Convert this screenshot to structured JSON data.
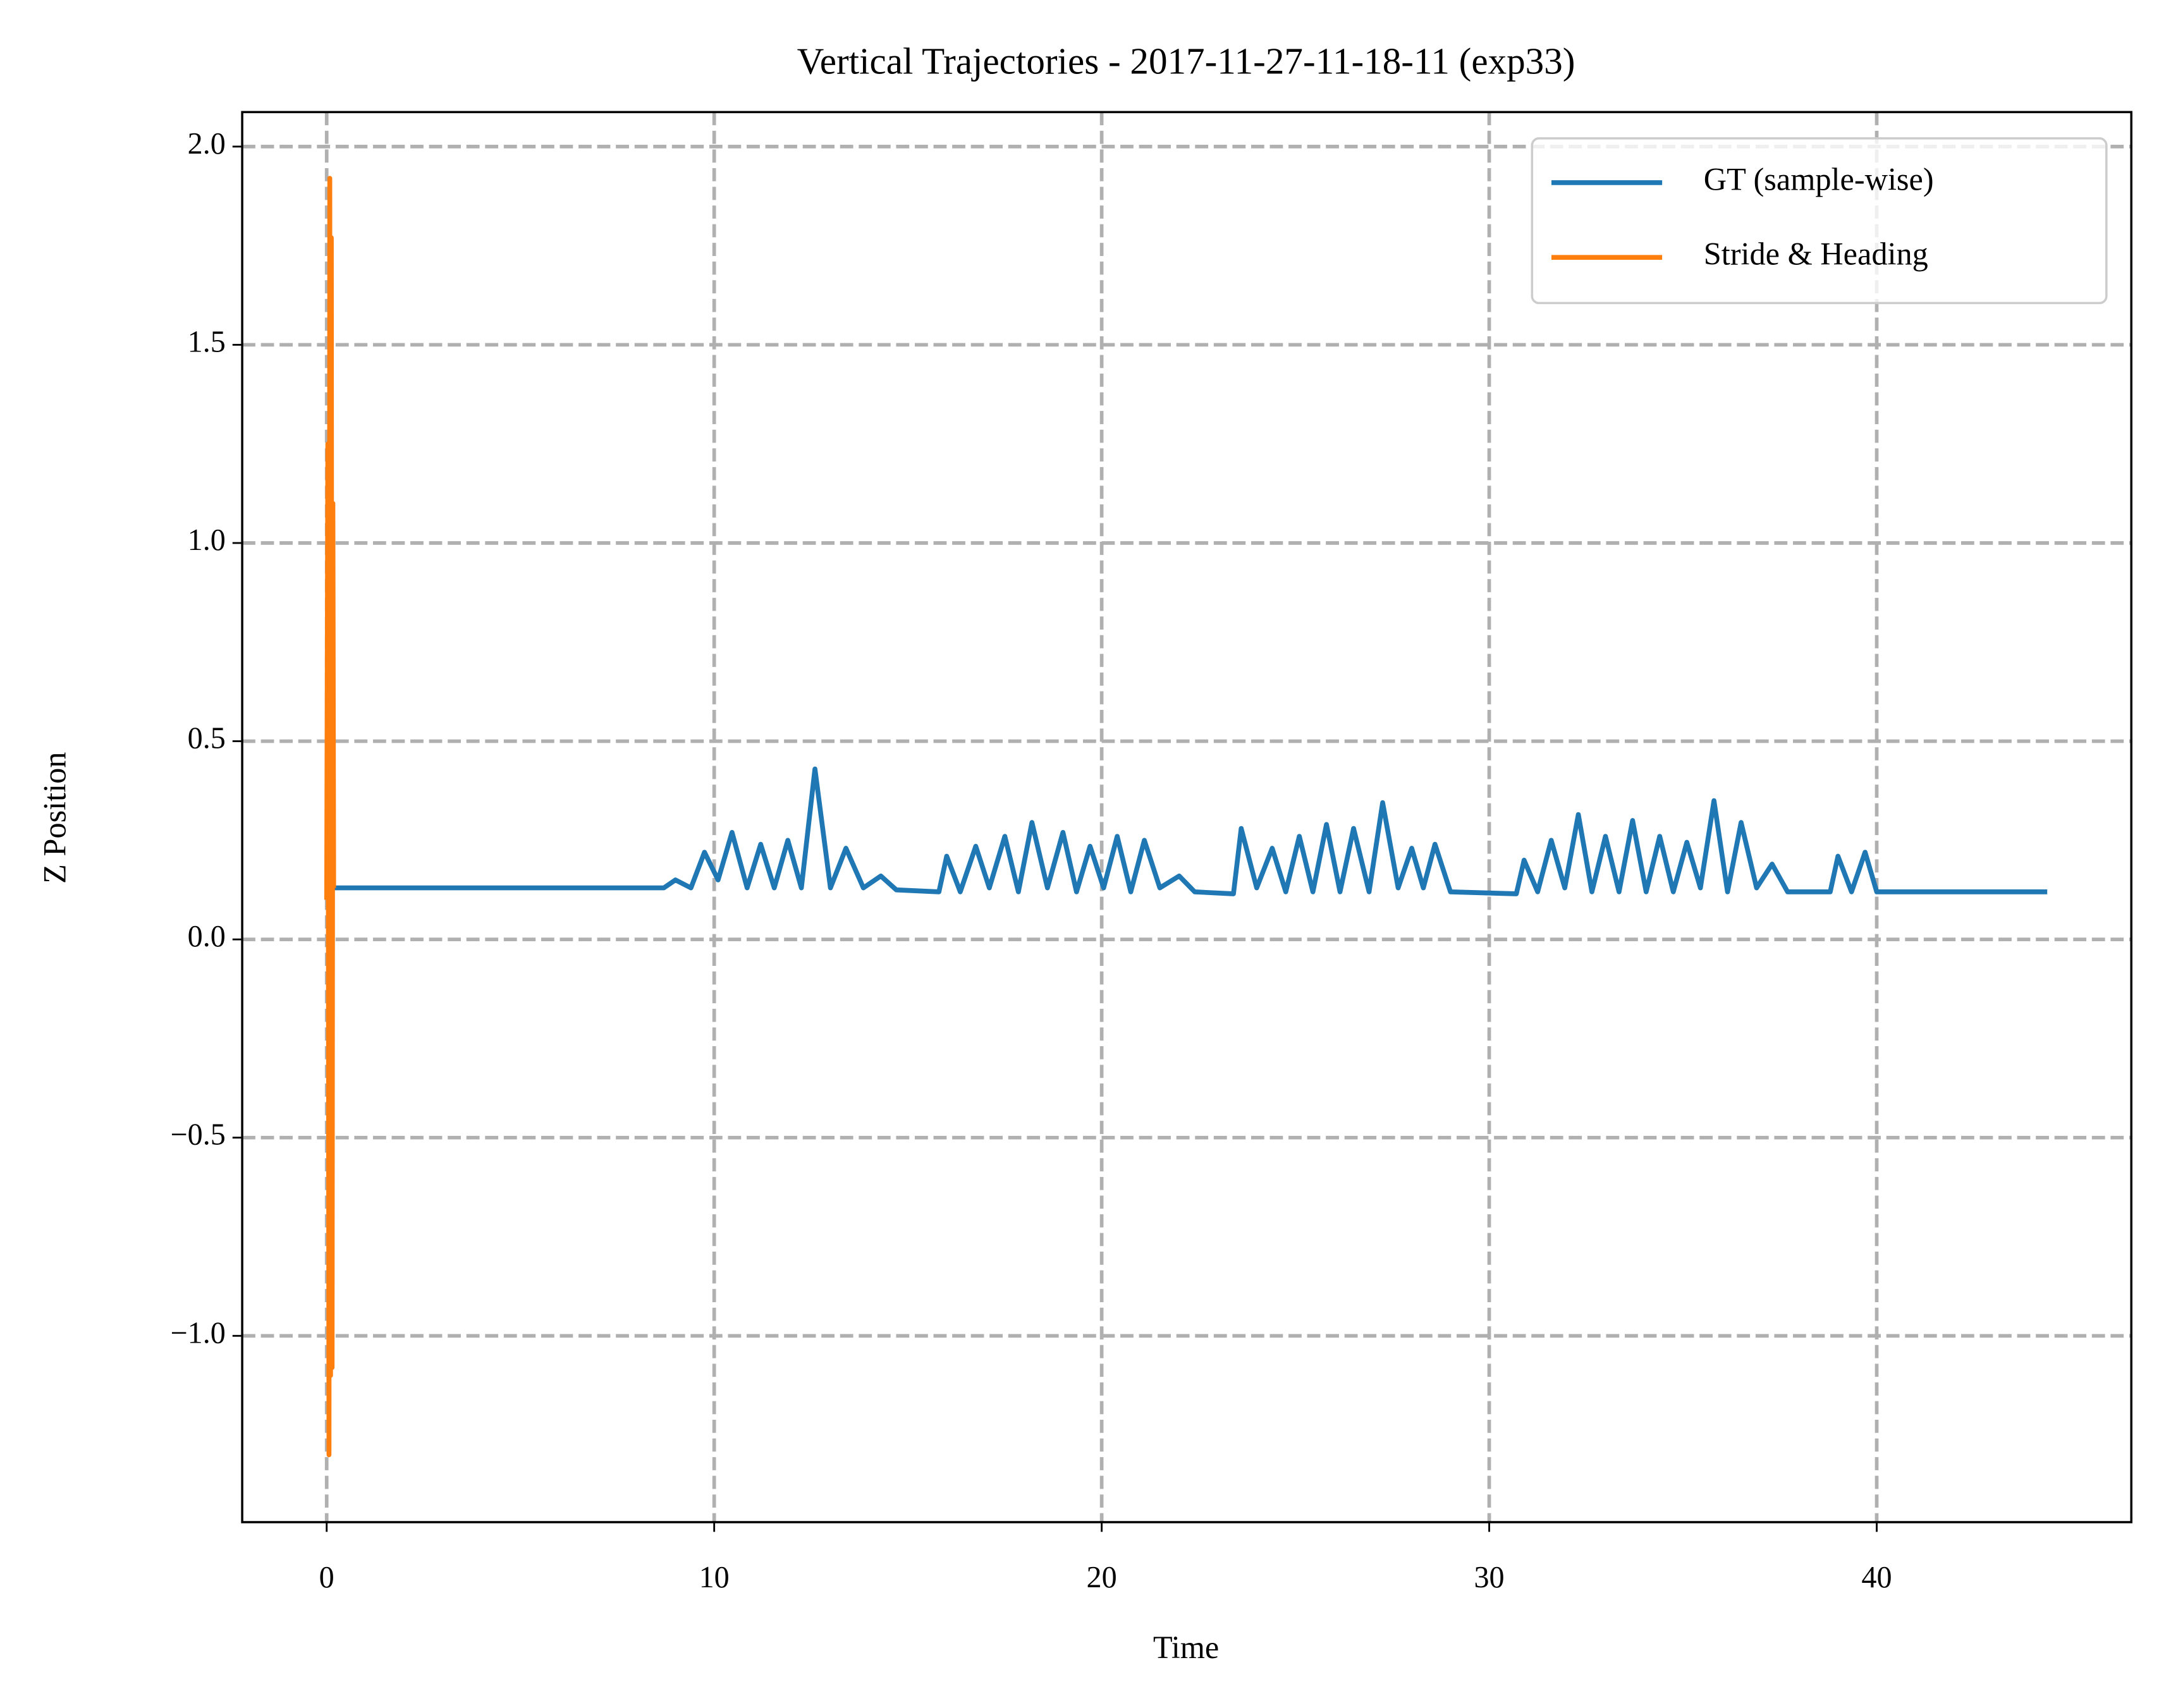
{
  "chart_data": {
    "type": "line",
    "title": "Vertical Trajectories - 2017-11-27-11-18-11 (exp33)",
    "xlabel": "Time",
    "ylabel": "Z Position",
    "xlim": [
      -2.18,
      46.57
    ],
    "ylim": [
      -1.47,
      2.087
    ],
    "xticks": [
      0,
      10,
      20,
      30,
      40
    ],
    "yticks": [
      {
        "value": -1.0,
        "label": "−1.0"
      },
      {
        "value": -0.5,
        "label": "−0.5"
      },
      {
        "value": 0.0,
        "label": "0.0"
      },
      0.5,
      {
        "value": 1.0,
        "label": "1.0"
      },
      1.5,
      {
        "value": 2.0,
        "label": "2.0"
      }
    ],
    "grid": true,
    "legend": "upper right",
    "series": [
      {
        "name": "GT (sample-wise)",
        "color": "#1f77b4",
        "x": [
          0.2,
          8.7,
          9.0,
          9.4,
          9.75,
          10.1,
          10.46,
          10.85,
          11.2,
          11.55,
          11.9,
          12.25,
          12.6,
          13.0,
          13.4,
          13.85,
          14.3,
          14.7,
          15.8,
          16.0,
          16.35,
          16.75,
          17.1,
          17.5,
          17.85,
          18.2,
          18.6,
          19.0,
          19.35,
          19.7,
          20.05,
          20.4,
          20.75,
          21.1,
          21.5,
          22.0,
          22.4,
          23.4,
          23.6,
          24.0,
          24.4,
          24.75,
          25.1,
          25.45,
          25.8,
          26.15,
          26.5,
          26.9,
          27.25,
          27.65,
          28.0,
          28.3,
          28.6,
          29.0,
          30.7,
          30.9,
          31.25,
          31.6,
          31.95,
          32.3,
          32.65,
          33.0,
          33.35,
          33.7,
          34.05,
          34.4,
          34.75,
          35.1,
          35.45,
          35.8,
          36.15,
          36.5,
          36.9,
          37.3,
          37.7,
          38.8,
          39.0,
          39.35,
          39.7,
          40.0,
          44.4
        ],
        "values": [
          0.13,
          0.13,
          0.15,
          0.13,
          0.22,
          0.15,
          0.27,
          0.13,
          0.24,
          0.13,
          0.25,
          0.13,
          0.43,
          0.13,
          0.23,
          0.13,
          0.16,
          0.125,
          0.12,
          0.21,
          0.12,
          0.235,
          0.13,
          0.26,
          0.12,
          0.295,
          0.13,
          0.27,
          0.12,
          0.235,
          0.13,
          0.26,
          0.12,
          0.25,
          0.13,
          0.16,
          0.12,
          0.115,
          0.28,
          0.13,
          0.23,
          0.12,
          0.26,
          0.12,
          0.29,
          0.12,
          0.28,
          0.12,
          0.345,
          0.13,
          0.23,
          0.13,
          0.24,
          0.12,
          0.115,
          0.2,
          0.12,
          0.25,
          0.13,
          0.315,
          0.12,
          0.26,
          0.12,
          0.3,
          0.12,
          0.26,
          0.12,
          0.245,
          0.13,
          0.35,
          0.12,
          0.295,
          0.13,
          0.19,
          0.12,
          0.12,
          0.21,
          0.12,
          0.22,
          0.12,
          0.12
        ]
      },
      {
        "name": "Stride & Heading",
        "color": "#ff7f0e",
        "x": [
          0,
          0.03,
          0.06,
          0.08,
          0.1,
          0.12,
          0.14,
          0.16,
          0.18,
          0.2
        ],
        "values": [
          0.1,
          1.25,
          -1.3,
          1.92,
          -1.1,
          1.77,
          -1.08,
          1.1,
          0.13,
          0.13
        ]
      }
    ]
  }
}
